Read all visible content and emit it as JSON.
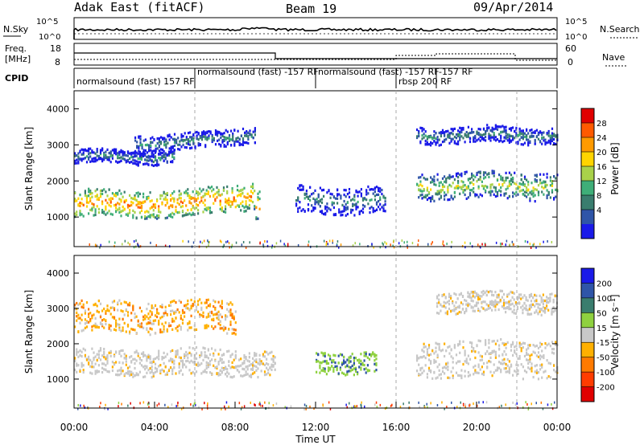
{
  "header": {
    "station": "Adak East (fitACF)",
    "beam": "Beam 19",
    "date": "09/Apr/2014"
  },
  "strips": {
    "nsky": {
      "label": "N.Sky",
      "ticks": [
        "10^5",
        "10^0"
      ]
    },
    "nsearch": {
      "label": "N.Search",
      "ticks": [
        "10^5",
        "10^0"
      ]
    },
    "freq": {
      "label_top": "Freq.",
      "label_unit": "[MHz]",
      "ticks": [
        "18",
        "8"
      ]
    },
    "nave": {
      "label": "Nave",
      "ticks": [
        "60",
        "0"
      ]
    },
    "cpid": {
      "label": "CPID",
      "segments": [
        {
          "start": 0,
          "text": "normalsound (fast) 157 RF"
        },
        {
          "start": 6,
          "text": "normalsound (fast) -157 RF"
        },
        {
          "start": 12,
          "text": "normalsound (fast) -157 RF"
        },
        {
          "start": 16,
          "text": "rbsp 200 RF"
        },
        {
          "start": 18,
          "text": "-157 RF"
        }
      ]
    }
  },
  "time_axis": {
    "label": "Time UT",
    "ticks": [
      "00:00",
      "04:00",
      "08:00",
      "12:00",
      "16:00",
      "20:00",
      "00:00"
    ]
  },
  "chart_data": [
    {
      "type": "heatmap",
      "panel": "power",
      "ylabel": "Slant Range [km]",
      "xlim_hours_ut": [
        0,
        24
      ],
      "ylim_km": [
        180,
        4500
      ],
      "yticks": [
        1000,
        2000,
        3000,
        4000
      ],
      "colorbar": {
        "label": "Power [dB]",
        "tick_labels": [
          "28",
          "24",
          "20",
          "16",
          "12",
          "8",
          "4"
        ],
        "colors": [
          "#e00000",
          "#ff5a00",
          "#ff9a00",
          "#ffd400",
          "#a9d24a",
          "#3fae78",
          "#3a7d6e",
          "#2f55a8",
          "#1a1ae8"
        ]
      },
      "bands": [
        {
          "x": [
            0,
            9.2
          ],
          "y_center_km": 1400,
          "thickness_km": 500,
          "core": "high"
        },
        {
          "x": [
            0,
            5
          ],
          "y_center_km": 2700,
          "thickness_km": 250,
          "core": "low"
        },
        {
          "x": [
            3,
            9
          ],
          "y_center_km": 3100,
          "thickness_km": 300,
          "core": "low"
        },
        {
          "x": [
            11,
            15.5
          ],
          "y_center_km": 1500,
          "thickness_km": 500,
          "core": "low"
        },
        {
          "x": [
            17,
            24
          ],
          "y_center_km": 1900,
          "thickness_km": 500,
          "core": "mid"
        },
        {
          "x": [
            17,
            24
          ],
          "y_center_km": 3300,
          "thickness_km": 300,
          "core": "low"
        }
      ]
    },
    {
      "type": "heatmap",
      "panel": "velocity",
      "ylabel": "Slant Range [km]",
      "xlim_hours_ut": [
        0,
        24
      ],
      "ylim_km": [
        180,
        4500
      ],
      "yticks": [
        1000,
        2000,
        3000,
        4000
      ],
      "colorbar": {
        "label": "Velocity [m s⁻¹]",
        "tick_labels": [
          "200",
          "100",
          "50",
          "15",
          "-15",
          "-50",
          "-100",
          "-200"
        ],
        "colors": [
          "#1a1ae8",
          "#2f55a8",
          "#3a7d6e",
          "#8fd13f",
          "#c8c8c8",
          "#ffb000",
          "#ff7a00",
          "#ff3c00",
          "#e00000"
        ]
      },
      "bands": [
        {
          "x": [
            0,
            10
          ],
          "y_center_km": 1500,
          "thickness_km": 500,
          "dominant": "-15..15"
        },
        {
          "x": [
            0,
            8
          ],
          "y_center_km": 2800,
          "thickness_km": 600,
          "dominant": "-50..-15"
        },
        {
          "x": [
            12,
            15
          ],
          "y_center_km": 1500,
          "thickness_km": 400,
          "dominant": "15..50"
        },
        {
          "x": [
            17,
            24
          ],
          "y_center_km": 1600,
          "thickness_km": 700,
          "dominant": "-15..15"
        },
        {
          "x": [
            18,
            24
          ],
          "y_center_km": 3200,
          "thickness_km": 400,
          "dominant": "-15..15"
        }
      ]
    }
  ]
}
